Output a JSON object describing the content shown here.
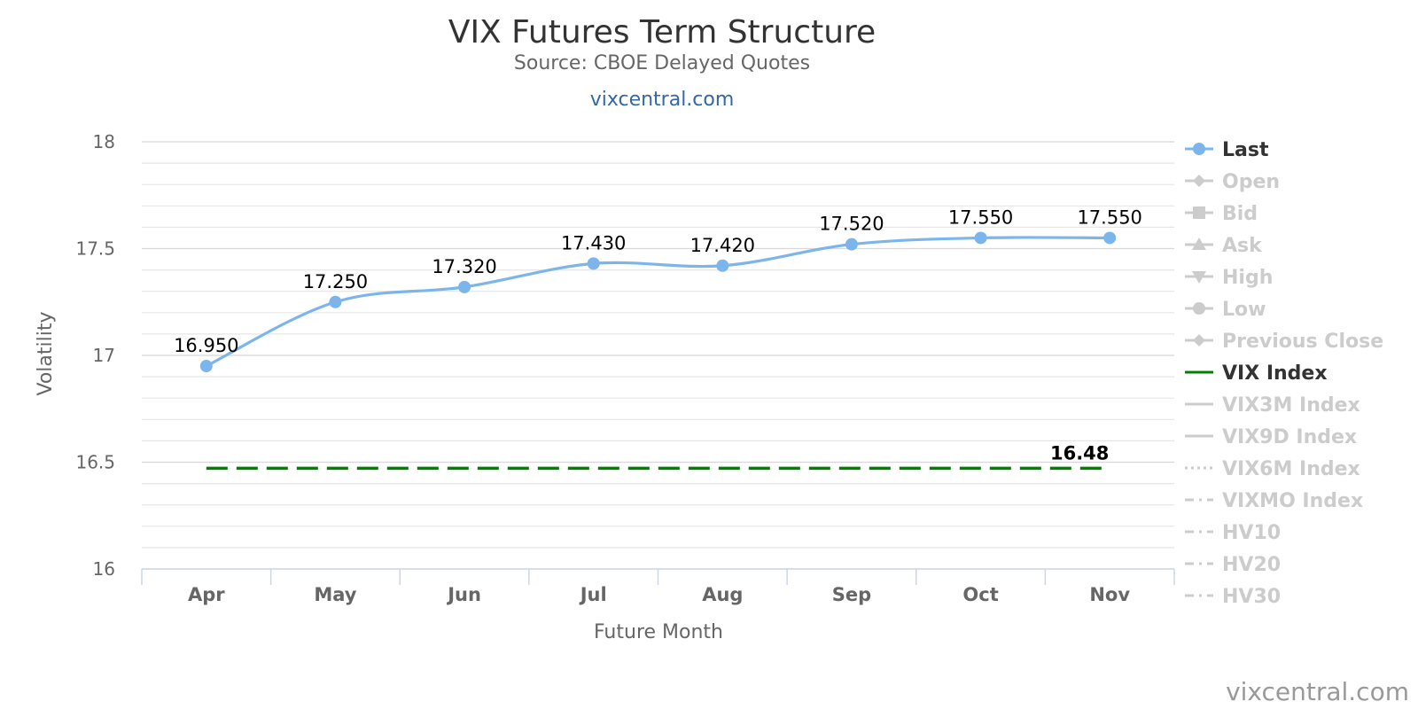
{
  "chart_data": {
    "type": "line",
    "title": "VIX Futures Term Structure",
    "subtitle": "Source: CBOE Delayed Quotes",
    "link_text": "vixcentral.com",
    "credit": "vixcentral.com",
    "xlabel": "Future Month",
    "ylabel": "Volatility",
    "ylim": [
      16,
      18
    ],
    "yticks": [
      "16",
      "16.5",
      "17",
      "17.5",
      "18"
    ],
    "grid": true,
    "legend_position": "right",
    "categories": [
      "Apr",
      "May",
      "Jun",
      "Jul",
      "Aug",
      "Sep",
      "Oct",
      "Nov"
    ],
    "series": [
      {
        "name": "Last",
        "color": "#7cb5ec",
        "values": [
          16.95,
          17.25,
          17.32,
          17.43,
          17.42,
          17.52,
          17.55,
          17.55
        ],
        "labels": [
          "16.950",
          "17.250",
          "17.320",
          "17.430",
          "17.420",
          "17.520",
          "17.550",
          "17.550"
        ]
      },
      {
        "name": "VIX Index",
        "color": "#008000",
        "dashed": true,
        "value": 16.48,
        "label": "16.48"
      }
    ],
    "legend": [
      {
        "name": "Last",
        "active": true,
        "marker": "circle",
        "color": "#7cb5ec"
      },
      {
        "name": "Open",
        "active": false,
        "marker": "diamond"
      },
      {
        "name": "Bid",
        "active": false,
        "marker": "square"
      },
      {
        "name": "Ask",
        "active": false,
        "marker": "triangle"
      },
      {
        "name": "High",
        "active": false,
        "marker": "triangle-down"
      },
      {
        "name": "Low",
        "active": false,
        "marker": "circle"
      },
      {
        "name": "Previous Close",
        "active": false,
        "marker": "diamond"
      },
      {
        "name": "VIX Index",
        "active": true,
        "marker": "line",
        "color": "#008000"
      },
      {
        "name": "VIX3M Index",
        "active": false,
        "marker": "line"
      },
      {
        "name": "VIX9D Index",
        "active": false,
        "marker": "line"
      },
      {
        "name": "VIX6M Index",
        "active": false,
        "marker": "dotted"
      },
      {
        "name": "VIXMO Index",
        "active": false,
        "marker": "dashdot"
      },
      {
        "name": "HV10",
        "active": false,
        "marker": "dashdot"
      },
      {
        "name": "HV20",
        "active": false,
        "marker": "dashdot"
      },
      {
        "name": "HV30",
        "active": false,
        "marker": "dashdot"
      }
    ],
    "inactive_color": "#cccccc",
    "active_text_color": "#333333"
  }
}
